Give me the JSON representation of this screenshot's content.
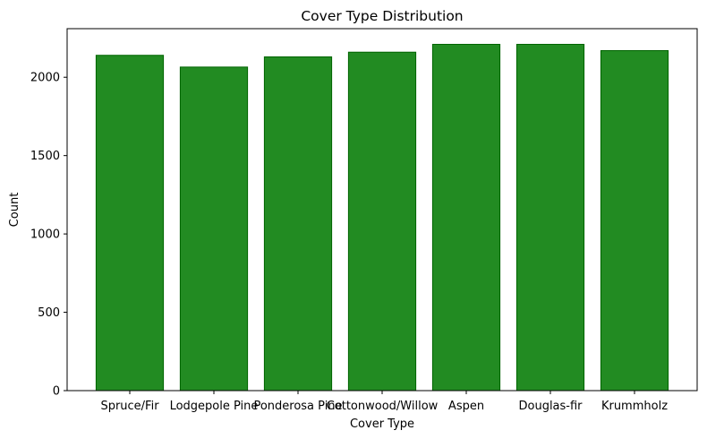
{
  "chart_data": {
    "type": "bar",
    "title": "Cover Type Distribution",
    "xlabel": "Cover Type",
    "ylabel": "Count",
    "categories": [
      "Spruce/Fir",
      "Lodgepole Pine",
      "Ponderosa Pine",
      "Cottonwood/Willow",
      "Aspen",
      "Douglas-fir",
      "Krummholz"
    ],
    "values": [
      2140,
      2065,
      2130,
      2160,
      2210,
      2210,
      2170
    ],
    "ylim": [
      0,
      2310
    ],
    "yticks": [
      0,
      500,
      1000,
      1500,
      2000
    ],
    "grid": false,
    "colors": {
      "bar_fill": "#228b22",
      "bar_edge": "#006400",
      "axis": "#000000"
    }
  }
}
